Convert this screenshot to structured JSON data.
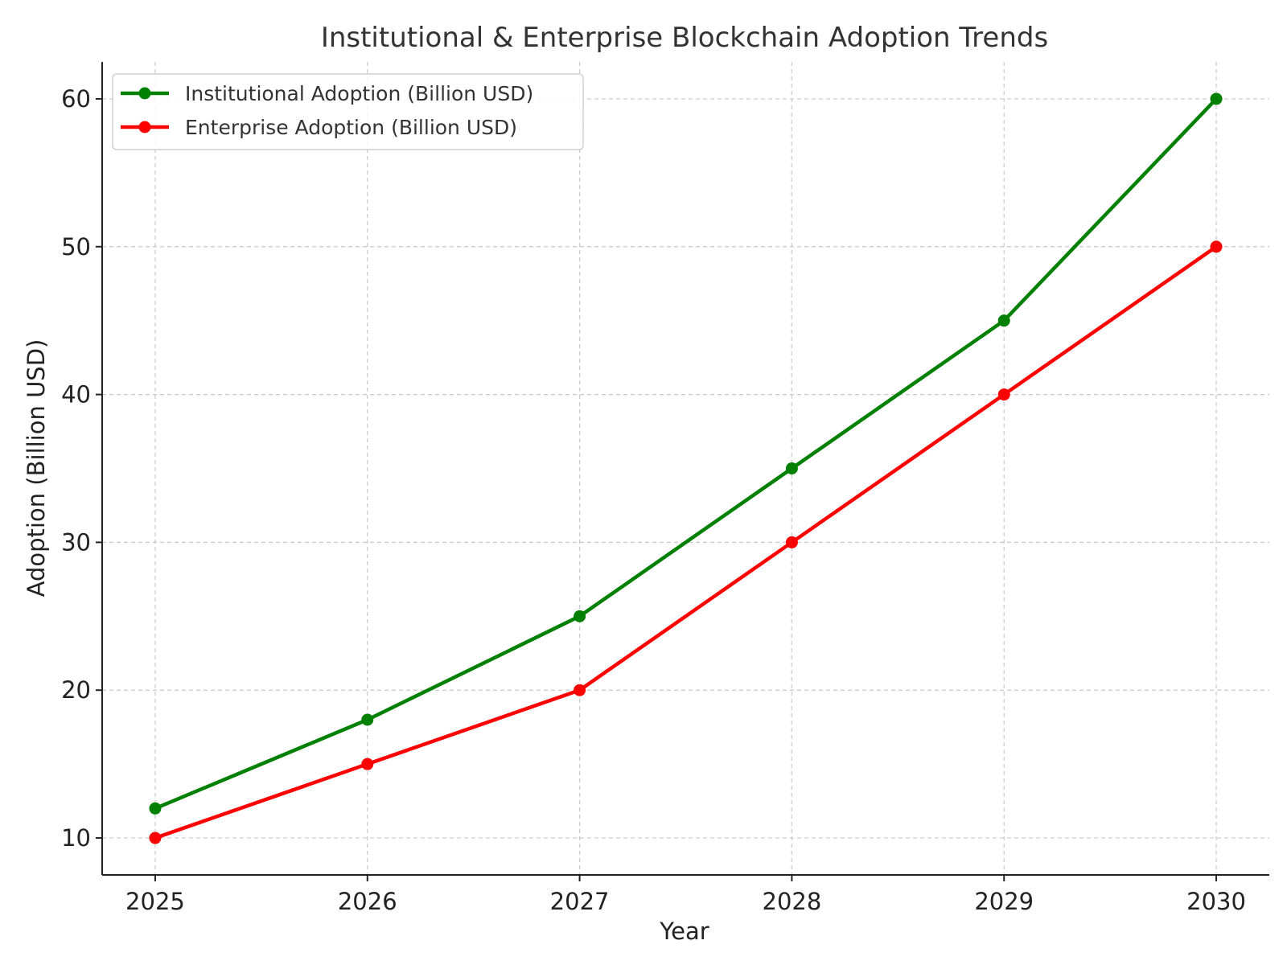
{
  "chart_data": {
    "type": "line",
    "title": "Institutional & Enterprise Blockchain Adoption Trends",
    "xlabel": "Year",
    "ylabel": "Adoption (Billion USD)",
    "x": [
      2025,
      2026,
      2027,
      2028,
      2029,
      2030
    ],
    "xlim": [
      2024.75,
      2030.25
    ],
    "ylim": [
      7.5,
      62.5
    ],
    "yticks": [
      10,
      20,
      30,
      40,
      50,
      60
    ],
    "grid": true,
    "legend_position": "top-left",
    "series": [
      {
        "name": "Institutional Adoption (Billion USD)",
        "color": "#008000",
        "marker": "circle",
        "values": [
          12,
          18,
          25,
          35,
          45,
          60
        ]
      },
      {
        "name": "Enterprise Adoption (Billion USD)",
        "color": "#ff0000",
        "marker": "circle",
        "values": [
          10,
          15,
          20,
          30,
          40,
          50
        ]
      }
    ]
  }
}
